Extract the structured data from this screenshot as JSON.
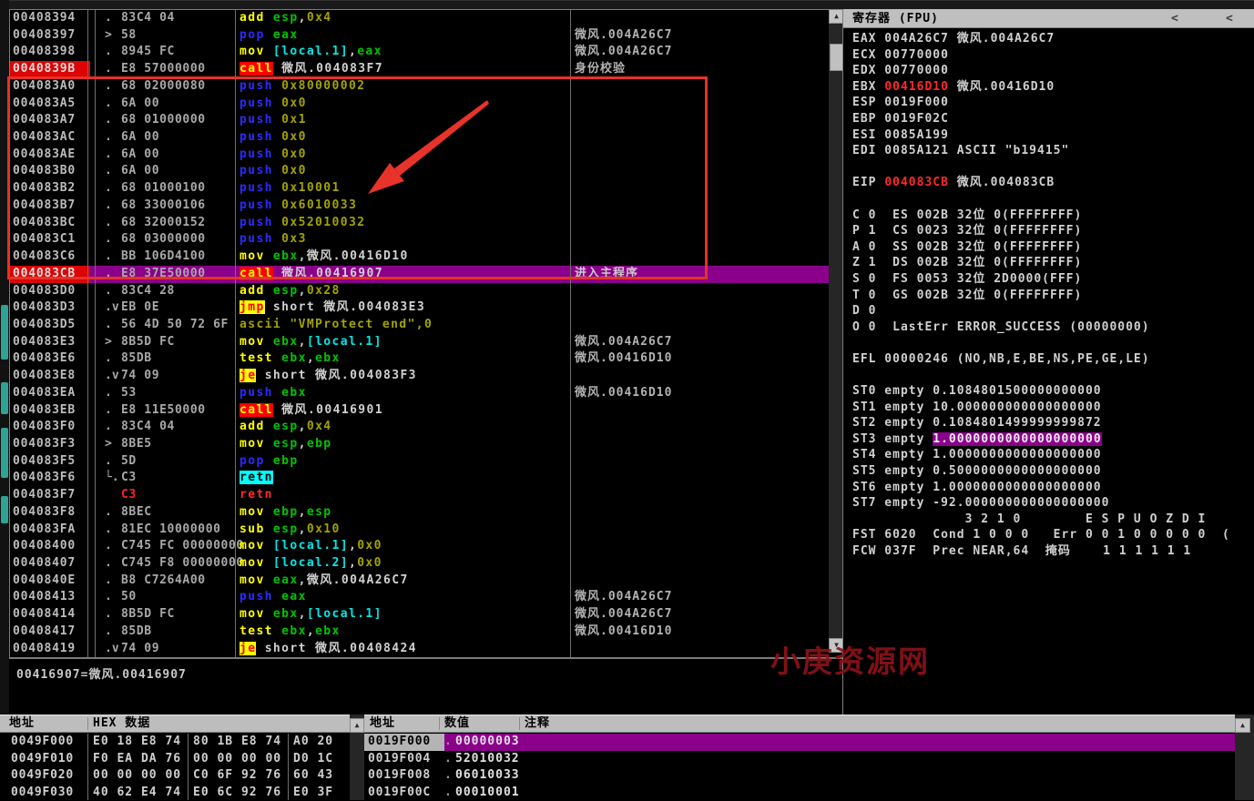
{
  "colors": {
    "highlight_purple": "#8b008b",
    "breakpoint_red": "#dc0404",
    "call_bg": "#ff0000",
    "jump_bg": "#ffff00",
    "retn_bg": "#00ffff",
    "annotation_red": "#e53228",
    "header_gray": "#bdbdbd"
  },
  "icons": {
    "scroll_up": "▲",
    "scroll_down": "▼",
    "collapse_left": "<",
    "collapse_right": "<"
  },
  "watermark": "小庚资源网",
  "info_pane": "00416907=微风.00416907",
  "disasm": {
    "rows": [
      {
        "addr": "00408394",
        "addr_hl": false,
        "flow": ".",
        "bytes": "83C4 04",
        "bytes_red": false,
        "hl": false,
        "comment": "",
        "ins": [
          [
            "add ",
            "y"
          ],
          [
            "esp",
            "g"
          ],
          [
            ",",
            "w"
          ],
          [
            "0x4",
            "o"
          ]
        ]
      },
      {
        "addr": "00408397",
        "addr_hl": false,
        "flow": ">",
        "bytes": "58",
        "bytes_red": false,
        "hl": false,
        "comment": "微风.004A26C7",
        "ins": [
          [
            "pop ",
            "b"
          ],
          [
            "eax",
            "g"
          ]
        ]
      },
      {
        "addr": "00408398",
        "addr_hl": false,
        "flow": ".",
        "bytes": "8945 FC",
        "bytes_red": false,
        "hl": false,
        "comment": "微风.004A26C7",
        "ins": [
          [
            "mov ",
            "y"
          ],
          [
            "[local.1]",
            "c"
          ],
          [
            ",",
            "w"
          ],
          [
            "eax",
            "g"
          ]
        ]
      },
      {
        "addr": "0040839B",
        "addr_hl": true,
        "flow": ".",
        "bytes": "E8 57000000",
        "bytes_red": false,
        "hl": false,
        "comment": "身份校验",
        "ins": [
          [
            "call",
            "cR"
          ],
          [
            " 微风.004083F7",
            "w"
          ]
        ]
      },
      {
        "addr": "004083A0",
        "addr_hl": false,
        "flow": ".",
        "bytes": "68 02000080",
        "bytes_red": false,
        "hl": false,
        "comment": "",
        "ins": [
          [
            "push ",
            "b"
          ],
          [
            "0x80000002",
            "o"
          ]
        ]
      },
      {
        "addr": "004083A5",
        "addr_hl": false,
        "flow": ".",
        "bytes": "6A 00",
        "bytes_red": false,
        "hl": false,
        "comment": "",
        "ins": [
          [
            "push ",
            "b"
          ],
          [
            "0x0",
            "o"
          ]
        ]
      },
      {
        "addr": "004083A7",
        "addr_hl": false,
        "flow": ".",
        "bytes": "68 01000000",
        "bytes_red": false,
        "hl": false,
        "comment": "",
        "ins": [
          [
            "push ",
            "b"
          ],
          [
            "0x1",
            "o"
          ]
        ]
      },
      {
        "addr": "004083AC",
        "addr_hl": false,
        "flow": ".",
        "bytes": "6A 00",
        "bytes_red": false,
        "hl": false,
        "comment": "",
        "ins": [
          [
            "push ",
            "b"
          ],
          [
            "0x0",
            "o"
          ]
        ]
      },
      {
        "addr": "004083AE",
        "addr_hl": false,
        "flow": ".",
        "bytes": "6A 00",
        "bytes_red": false,
        "hl": false,
        "comment": "",
        "ins": [
          [
            "push ",
            "b"
          ],
          [
            "0x0",
            "o"
          ]
        ]
      },
      {
        "addr": "004083B0",
        "addr_hl": false,
        "flow": ".",
        "bytes": "6A 00",
        "bytes_red": false,
        "hl": false,
        "comment": "",
        "ins": [
          [
            "push ",
            "b"
          ],
          [
            "0x0",
            "o"
          ]
        ]
      },
      {
        "addr": "004083B2",
        "addr_hl": false,
        "flow": ".",
        "bytes": "68 01000100",
        "bytes_red": false,
        "hl": false,
        "comment": "",
        "ins": [
          [
            "push ",
            "b"
          ],
          [
            "0x10001",
            "o"
          ]
        ]
      },
      {
        "addr": "004083B7",
        "addr_hl": false,
        "flow": ".",
        "bytes": "68 33000106",
        "bytes_red": false,
        "hl": false,
        "comment": "",
        "ins": [
          [
            "push ",
            "b"
          ],
          [
            "0x6010033",
            "o"
          ]
        ]
      },
      {
        "addr": "004083BC",
        "addr_hl": false,
        "flow": ".",
        "bytes": "68 32000152",
        "bytes_red": false,
        "hl": false,
        "comment": "",
        "ins": [
          [
            "push ",
            "b"
          ],
          [
            "0x52010032",
            "o"
          ]
        ]
      },
      {
        "addr": "004083C1",
        "addr_hl": false,
        "flow": ".",
        "bytes": "68 03000000",
        "bytes_red": false,
        "hl": false,
        "comment": "",
        "ins": [
          [
            "push ",
            "b"
          ],
          [
            "0x3",
            "o"
          ]
        ]
      },
      {
        "addr": "004083C6",
        "addr_hl": false,
        "flow": ".",
        "bytes": "BB 106D4100",
        "bytes_red": false,
        "hl": false,
        "comment": "",
        "ins": [
          [
            "mov ",
            "y"
          ],
          [
            "ebx",
            "g"
          ],
          [
            ",微风.00416D10",
            "w"
          ]
        ]
      },
      {
        "addr": "004083CB",
        "addr_hl": true,
        "flow": ".",
        "bytes": "E8 37E50000",
        "bytes_red": false,
        "hl": true,
        "comment": "进入主程序",
        "ins": [
          [
            "call",
            "cR"
          ],
          [
            " 微风.00416907",
            "w"
          ]
        ]
      },
      {
        "addr": "004083D0",
        "addr_hl": false,
        "flow": ".",
        "bytes": "83C4 28",
        "bytes_red": false,
        "hl": false,
        "comment": "",
        "ins": [
          [
            "add ",
            "y"
          ],
          [
            "esp",
            "g"
          ],
          [
            ",",
            "w"
          ],
          [
            "0x28",
            "o"
          ]
        ]
      },
      {
        "addr": "004083D3",
        "addr_hl": false,
        "flow": ".v",
        "bytes": "EB 0E",
        "bytes_red": false,
        "hl": false,
        "comment": "",
        "ins": [
          [
            "jmp",
            "jY"
          ],
          [
            " short 微风.004083E3",
            "w"
          ]
        ]
      },
      {
        "addr": "004083D5",
        "addr_hl": false,
        "flow": ".",
        "bytes": "56 4D 50 72 6F",
        "bytes_red": false,
        "hl": false,
        "comment": "",
        "ins": [
          [
            "ascii \"VMProtect end\",0",
            "a"
          ]
        ]
      },
      {
        "addr": "004083E3",
        "addr_hl": false,
        "flow": ">",
        "bytes": "8B5D FC",
        "bytes_red": false,
        "hl": false,
        "comment": "微风.004A26C7",
        "ins": [
          [
            "mov ",
            "y"
          ],
          [
            "ebx",
            "g"
          ],
          [
            ",",
            "w"
          ],
          [
            "[local.1]",
            "c"
          ]
        ]
      },
      {
        "addr": "004083E6",
        "addr_hl": false,
        "flow": ".",
        "bytes": "85DB",
        "bytes_red": false,
        "hl": false,
        "comment": "微风.00416D10",
        "ins": [
          [
            "test ",
            "y"
          ],
          [
            "ebx",
            "g"
          ],
          [
            ",",
            "w"
          ],
          [
            "ebx",
            "g"
          ]
        ]
      },
      {
        "addr": "004083E8",
        "addr_hl": false,
        "flow": ".v",
        "bytes": "74 09",
        "bytes_red": false,
        "hl": false,
        "comment": "",
        "ins": [
          [
            "je",
            "jY"
          ],
          [
            " short 微风.004083F3",
            "w"
          ]
        ]
      },
      {
        "addr": "004083EA",
        "addr_hl": false,
        "flow": ".",
        "bytes": "53",
        "bytes_red": false,
        "hl": false,
        "comment": "微风.00416D10",
        "ins": [
          [
            "push ",
            "b"
          ],
          [
            "ebx",
            "g"
          ]
        ]
      },
      {
        "addr": "004083EB",
        "addr_hl": false,
        "flow": ".",
        "bytes": "E8 11E50000",
        "bytes_red": false,
        "hl": false,
        "comment": "",
        "ins": [
          [
            "call",
            "cR"
          ],
          [
            " 微风.00416901",
            "w"
          ]
        ]
      },
      {
        "addr": "004083F0",
        "addr_hl": false,
        "flow": ".",
        "bytes": "83C4 04",
        "bytes_red": false,
        "hl": false,
        "comment": "",
        "ins": [
          [
            "add ",
            "y"
          ],
          [
            "esp",
            "g"
          ],
          [
            ",",
            "w"
          ],
          [
            "0x4",
            "o"
          ]
        ]
      },
      {
        "addr": "004083F3",
        "addr_hl": false,
        "flow": ">",
        "bytes": "8BE5",
        "bytes_red": false,
        "hl": false,
        "comment": "",
        "ins": [
          [
            "mov ",
            "y"
          ],
          [
            "esp",
            "g"
          ],
          [
            ",",
            "w"
          ],
          [
            "ebp",
            "g"
          ]
        ]
      },
      {
        "addr": "004083F5",
        "addr_hl": false,
        "flow": ".",
        "bytes": "5D",
        "bytes_red": false,
        "hl": false,
        "comment": "",
        "ins": [
          [
            "pop ",
            "b"
          ],
          [
            "ebp",
            "g"
          ]
        ]
      },
      {
        "addr": "004083F6",
        "addr_hl": false,
        "flow": "└.",
        "bytes": "C3",
        "bytes_red": false,
        "hl": false,
        "comment": "",
        "ins": [
          [
            "retn",
            "rc"
          ]
        ]
      },
      {
        "addr": "004083F7",
        "addr_hl": false,
        "flow": "",
        "bytes": "C3",
        "bytes_red": true,
        "hl": false,
        "comment": "",
        "ins": [
          [
            "retn",
            "rr"
          ]
        ]
      },
      {
        "addr": "004083F8",
        "addr_hl": false,
        "flow": ".",
        "bytes": "8BEC",
        "bytes_red": false,
        "hl": false,
        "comment": "",
        "ins": [
          [
            "mov ",
            "y"
          ],
          [
            "ebp",
            "g"
          ],
          [
            ",",
            "w"
          ],
          [
            "esp",
            "g"
          ]
        ]
      },
      {
        "addr": "004083FA",
        "addr_hl": false,
        "flow": ".",
        "bytes": "81EC 10000000",
        "bytes_red": false,
        "hl": false,
        "comment": "",
        "ins": [
          [
            "sub ",
            "y"
          ],
          [
            "esp",
            "g"
          ],
          [
            ",",
            "w"
          ],
          [
            "0x10",
            "o"
          ]
        ]
      },
      {
        "addr": "00408400",
        "addr_hl": false,
        "flow": ".",
        "bytes": "C745 FC 00000000",
        "bytes_red": false,
        "hl": false,
        "comment": "",
        "ins": [
          [
            "mov ",
            "y"
          ],
          [
            "[local.1]",
            "c"
          ],
          [
            ",",
            "w"
          ],
          [
            "0x0",
            "o"
          ]
        ]
      },
      {
        "addr": "00408407",
        "addr_hl": false,
        "flow": ".",
        "bytes": "C745 F8 00000000",
        "bytes_red": false,
        "hl": false,
        "comment": "",
        "ins": [
          [
            "mov ",
            "y"
          ],
          [
            "[local.2]",
            "c"
          ],
          [
            ",",
            "w"
          ],
          [
            "0x0",
            "o"
          ]
        ]
      },
      {
        "addr": "0040840E",
        "addr_hl": false,
        "flow": ".",
        "bytes": "B8 C7264A00",
        "bytes_red": false,
        "hl": false,
        "comment": "",
        "ins": [
          [
            "mov ",
            "y"
          ],
          [
            "eax",
            "g"
          ],
          [
            ",微风.004A26C7",
            "w"
          ]
        ]
      },
      {
        "addr": "00408413",
        "addr_hl": false,
        "flow": ".",
        "bytes": "50",
        "bytes_red": false,
        "hl": false,
        "comment": "微风.004A26C7",
        "ins": [
          [
            "push ",
            "b"
          ],
          [
            "eax",
            "g"
          ]
        ]
      },
      {
        "addr": "00408414",
        "addr_hl": false,
        "flow": ".",
        "bytes": "8B5D FC",
        "bytes_red": false,
        "hl": false,
        "comment": "微风.004A26C7",
        "ins": [
          [
            "mov ",
            "y"
          ],
          [
            "ebx",
            "g"
          ],
          [
            ",",
            "w"
          ],
          [
            "[local.1]",
            "c"
          ]
        ]
      },
      {
        "addr": "00408417",
        "addr_hl": false,
        "flow": ".",
        "bytes": "85DB",
        "bytes_red": false,
        "hl": false,
        "comment": "微风.00416D10",
        "ins": [
          [
            "test ",
            "y"
          ],
          [
            "ebx",
            "g"
          ],
          [
            ",",
            "w"
          ],
          [
            "ebx",
            "g"
          ]
        ]
      },
      {
        "addr": "00408419",
        "addr_hl": false,
        "flow": ".v",
        "bytes": "74 09",
        "bytes_red": false,
        "hl": false,
        "comment": "",
        "ins": [
          [
            "je",
            "jY"
          ],
          [
            " short 微风.00408424",
            "w"
          ]
        ]
      }
    ]
  },
  "registers": {
    "title": "寄存器 (FPU)",
    "lines": [
      [
        [
          "EAX 004A26C7 微风.004A26C7",
          "w"
        ]
      ],
      [
        [
          "ECX 00770000",
          "w"
        ]
      ],
      [
        [
          "EDX 00770000",
          "w"
        ]
      ],
      [
        [
          "EBX ",
          "w"
        ],
        [
          "00416D10",
          "r"
        ],
        [
          " 微风.00416D10",
          "w"
        ]
      ],
      [
        [
          "ESP 0019F000",
          "w"
        ]
      ],
      [
        [
          "EBP 0019F02C",
          "w"
        ]
      ],
      [
        [
          "ESI 0085A199",
          "w"
        ]
      ],
      [
        [
          "EDI 0085A121 ASCII \"b19415\"",
          "w"
        ]
      ],
      [],
      [
        [
          "EIP ",
          "w"
        ],
        [
          "004083CB",
          "r"
        ],
        [
          " 微风.004083CB",
          "w"
        ]
      ],
      [],
      [
        [
          "C 0  ES 002B 32位 0(FFFFFFFF)",
          "w"
        ]
      ],
      [
        [
          "P 1  CS 0023 32位 0(FFFFFFFF)",
          "w"
        ]
      ],
      [
        [
          "A 0  SS 002B 32位 0(FFFFFFFF)",
          "w"
        ]
      ],
      [
        [
          "Z 1  DS 002B 32位 0(FFFFFFFF)",
          "w"
        ]
      ],
      [
        [
          "S 0  FS 0053 32位 2D0000(FFF)",
          "w"
        ]
      ],
      [
        [
          "T 0  GS 002B 32位 0(FFFFFFFF)",
          "w"
        ]
      ],
      [
        [
          "D 0",
          "w"
        ]
      ],
      [
        [
          "O 0  LastErr ERROR_SUCCESS (00000000)",
          "w"
        ]
      ],
      [],
      [
        [
          "EFL 00000246 (NO,NB,E,BE,NS,PE,GE,LE)",
          "w"
        ]
      ],
      [],
      [
        [
          "ST0 empty 0.1084801500000000000",
          "w"
        ]
      ],
      [
        [
          "ST1 empty 10.000000000000000000",
          "w"
        ]
      ],
      [
        [
          "ST2 empty 0.1084801499999999872",
          "w"
        ]
      ],
      [
        [
          "ST3 empty ",
          "w"
        ],
        [
          "1.0000000000000000000",
          "hl"
        ]
      ],
      [
        [
          "ST4 empty 1.0000000000000000000",
          "w"
        ]
      ],
      [
        [
          "ST5 empty 0.5000000000000000000",
          "w"
        ]
      ],
      [
        [
          "ST6 empty 1.0000000000000000000",
          "w"
        ]
      ],
      [
        [
          "ST7 empty -92.000000000000000000",
          "w"
        ]
      ],
      [
        [
          "              3 2 1 0        E S P U O Z D I",
          "w"
        ]
      ],
      [
        [
          "FST 6020  Cond 1 0 0 0   Err 0 0 1 0 0 0 0 0  (",
          "w"
        ]
      ],
      [
        [
          "FCW 037F  Prec NEAR,64  掩码    1 1 1 1 1 1",
          "w"
        ]
      ]
    ]
  },
  "dump": {
    "headers": [
      "地址",
      "HEX 数据"
    ],
    "rows": [
      {
        "addr": "0049F000",
        "g1": "E0 18 E8 74",
        "g2": "80 1B E8 74",
        "g3": "A0 20"
      },
      {
        "addr": "0049F010",
        "g1": "F0 EA DA 76",
        "g2": "00 00 00 00",
        "g3": "D0 1C"
      },
      {
        "addr": "0049F020",
        "g1": "00 00 00 00",
        "g2": "C0 6F 92 76",
        "g3": "60 43"
      },
      {
        "addr": "0049F030",
        "g1": "40 62 E4 74",
        "g2": "E0 6C 92 76",
        "g3": "E0 3F"
      }
    ]
  },
  "stack": {
    "headers": [
      "地址",
      "数值",
      "注释"
    ],
    "rows": [
      {
        "addr": "0019F000",
        "dot": ".",
        "value": "00000003",
        "comment": "",
        "hl": true
      },
      {
        "addr": "0019F004",
        "dot": ".",
        "value": "52010032",
        "comment": "",
        "hl": false
      },
      {
        "addr": "0019F008",
        "dot": ".",
        "value": "06010033",
        "comment": "",
        "hl": false
      },
      {
        "addr": "0019F00C",
        "dot": ".",
        "value": "00010001",
        "comment": "",
        "hl": false
      }
    ]
  }
}
